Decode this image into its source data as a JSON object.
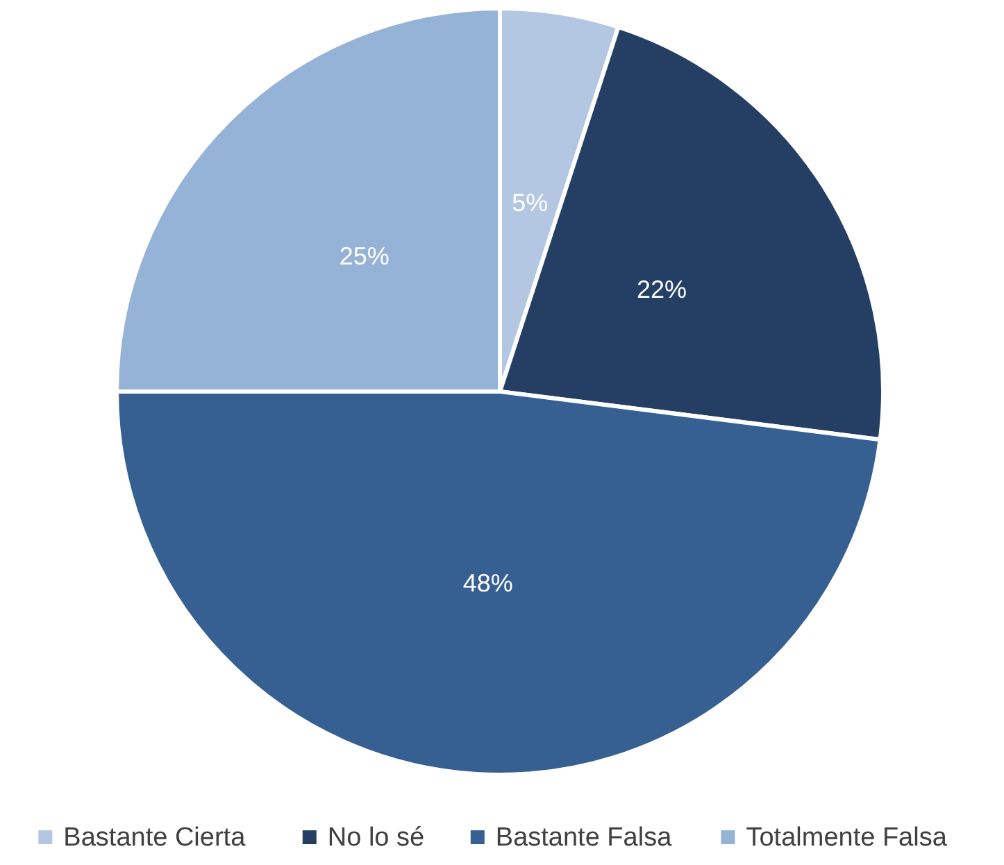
{
  "chart_data": {
    "type": "pie",
    "categories": [
      "Bastante Cierta",
      "No lo sé",
      "Bastante Falsa",
      "Totalmente Falsa"
    ],
    "values": [
      5,
      22,
      48,
      25
    ],
    "colors": [
      "#b4c7e2",
      "#243f63",
      "#366092",
      "#95b3d7"
    ],
    "value_labels": [
      "5%",
      "22%",
      "48%",
      "25%"
    ],
    "legend": "bottom"
  }
}
